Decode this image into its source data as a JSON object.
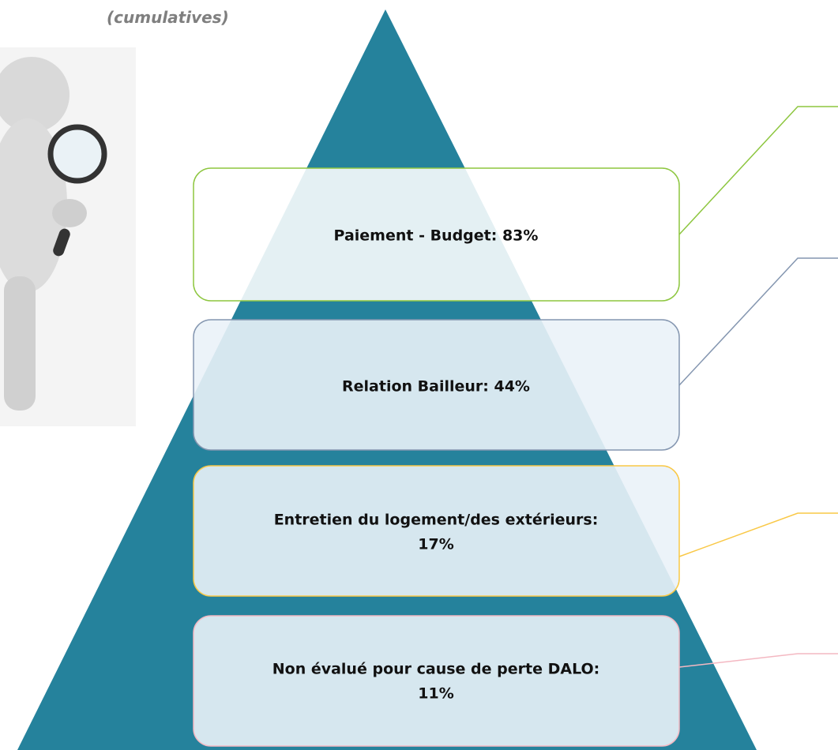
{
  "header": {
    "note": "(cumulatives)"
  },
  "boxes": [
    {
      "lines": [
        "Paiement - Budget: 83%"
      ]
    },
    {
      "lines": [
        "Relation Bailleur: 44%"
      ]
    },
    {
      "lines": [
        "Entretien du logement/des extérieurs:",
        "17%"
      ]
    },
    {
      "lines": [
        "Non évalué pour cause de perte DALO:",
        "11%"
      ]
    }
  ]
}
